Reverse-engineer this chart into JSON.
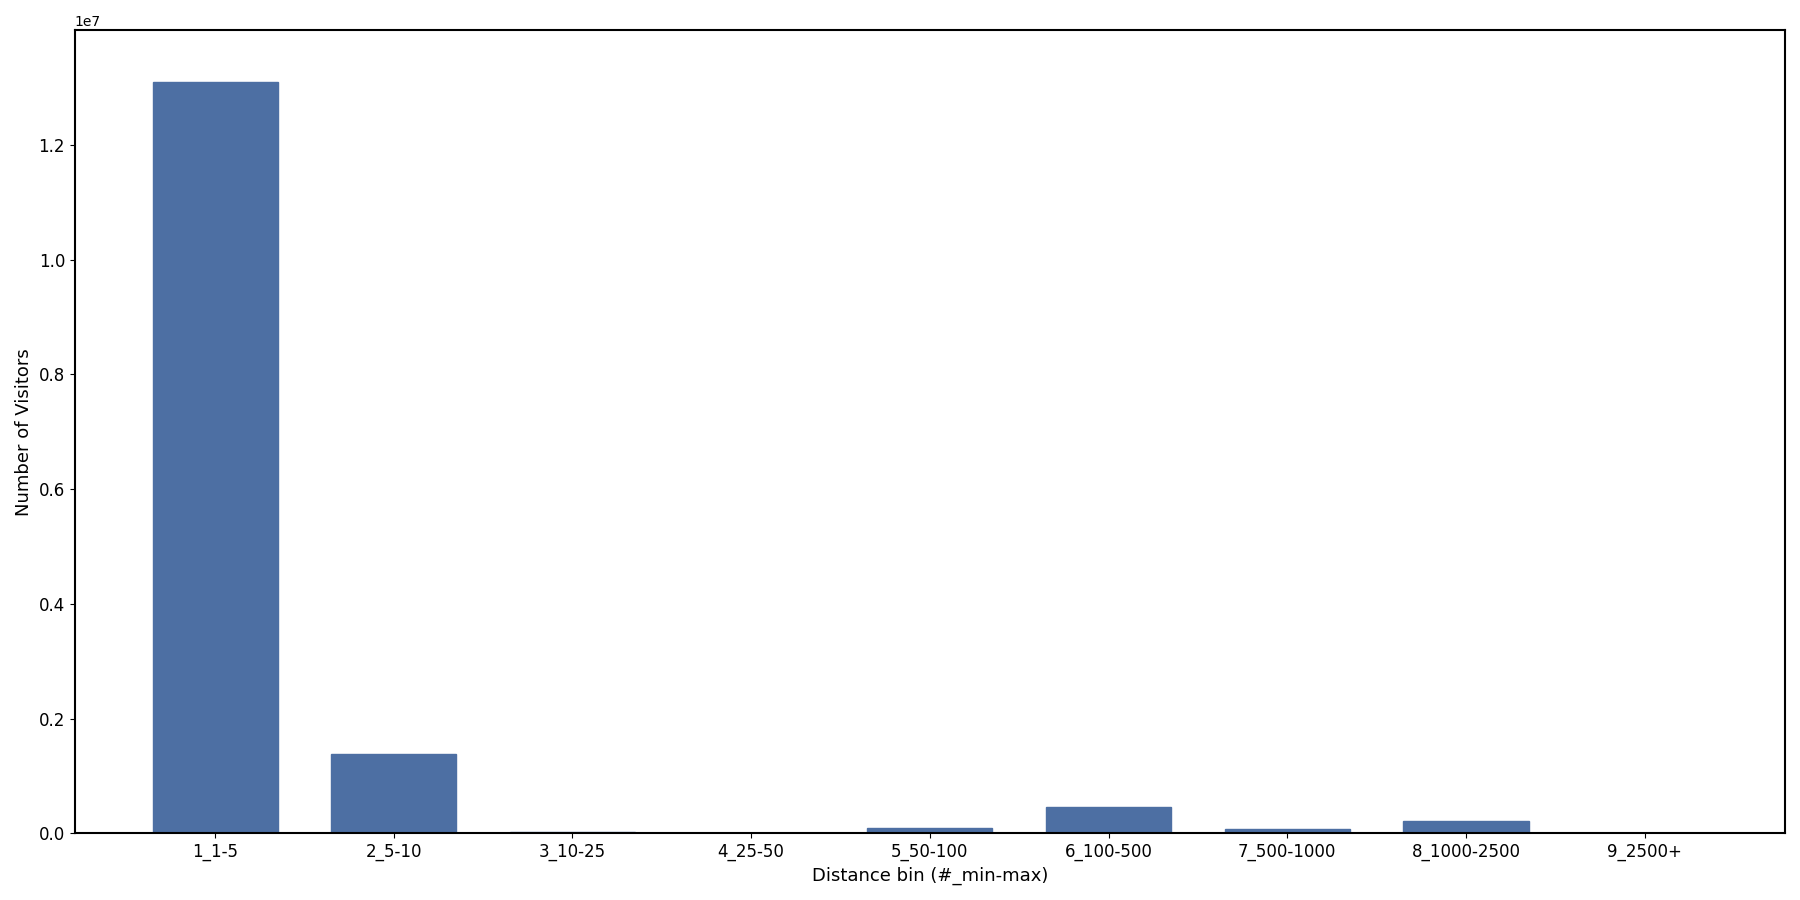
{
  "categories": [
    "1_1-5",
    "2_5-10",
    "3_10-25",
    "4_25-50",
    "5_50-100",
    "6_100-500",
    "7_500-1000",
    "8_1000-2500",
    "9_2500+"
  ],
  "values": [
    13100000,
    1380000,
    30000,
    15000,
    100000,
    460000,
    80000,
    220000,
    5000
  ],
  "bar_color": "#4d6fa3",
  "xlabel": "Distance bin (#_min-max)",
  "ylabel": "Number of Visitors",
  "background_color": "#ffffff",
  "ylim": [
    0,
    14000000
  ],
  "figsize": [
    18.0,
    9.0
  ],
  "dpi": 100
}
